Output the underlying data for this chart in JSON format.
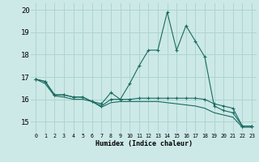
{
  "title": "",
  "xlabel": "Humidex (Indice chaleur)",
  "ylabel": "",
  "background_color": "#cce9e7",
  "grid_color": "#aed4d1",
  "line_color": "#1a6b60",
  "xlim": [
    -0.5,
    23.5
  ],
  "ylim": [
    14.5,
    20.3
  ],
  "yticks": [
    15,
    16,
    17,
    18,
    19,
    20
  ],
  "xticks": [
    0,
    1,
    2,
    3,
    4,
    5,
    6,
    7,
    8,
    9,
    10,
    11,
    12,
    13,
    14,
    15,
    16,
    17,
    18,
    19,
    20,
    21,
    22,
    23
  ],
  "line1": [
    16.9,
    16.8,
    16.2,
    16.2,
    16.1,
    16.1,
    15.9,
    15.8,
    16.3,
    16.0,
    16.7,
    17.5,
    18.2,
    18.2,
    19.9,
    18.2,
    19.3,
    18.6,
    17.9,
    15.7,
    15.5,
    15.4,
    14.8,
    14.8
  ],
  "line2": [
    16.9,
    16.8,
    16.2,
    16.2,
    16.1,
    16.1,
    15.9,
    15.7,
    16.0,
    16.0,
    16.0,
    16.05,
    16.05,
    16.05,
    16.05,
    16.05,
    16.05,
    16.05,
    16.0,
    15.8,
    15.7,
    15.6,
    14.8,
    14.8
  ],
  "line3": [
    16.9,
    16.7,
    16.15,
    16.1,
    16.0,
    16.0,
    15.9,
    15.65,
    15.85,
    15.9,
    15.9,
    15.9,
    15.9,
    15.9,
    15.85,
    15.8,
    15.75,
    15.7,
    15.6,
    15.4,
    15.3,
    15.2,
    14.75,
    14.75
  ]
}
